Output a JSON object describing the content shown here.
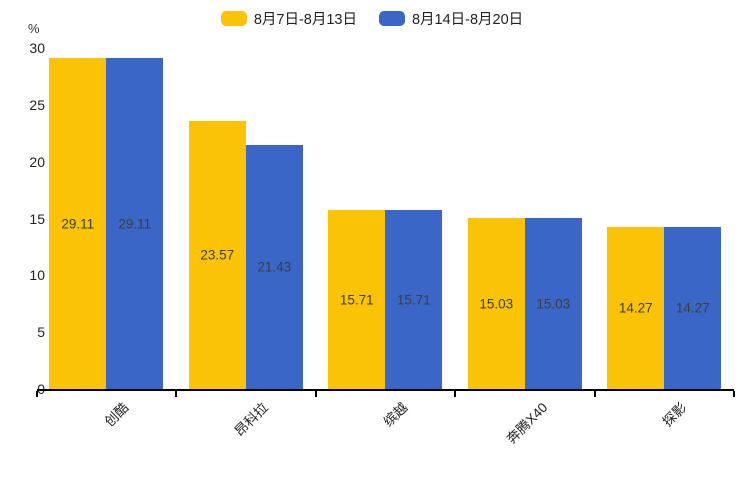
{
  "chart_data": {
    "type": "bar",
    "title": "",
    "xlabel": "",
    "ylabel": "%",
    "categories": [
      "创酷",
      "昂科拉",
      "缤越",
      "奔腾X40",
      "探影"
    ],
    "series": [
      {
        "name": "8月7日-8月13日",
        "color": "#FBC306",
        "values": [
          29.11,
          23.57,
          15.71,
          15.03,
          14.27
        ]
      },
      {
        "name": "8月14日-8月20日",
        "color": "#3A66C8",
        "values": [
          29.11,
          21.43,
          15.71,
          15.03,
          14.27
        ]
      }
    ],
    "ylim": [
      0,
      30
    ],
    "yticks": [
      0,
      5,
      10,
      15,
      20,
      25,
      30
    ],
    "grid": false,
    "legend_position": "top",
    "value_labels": "inside-center",
    "x_label_rotation_deg": 45,
    "axis_color": "#000000",
    "label_text_color": "#3d3d3d"
  }
}
